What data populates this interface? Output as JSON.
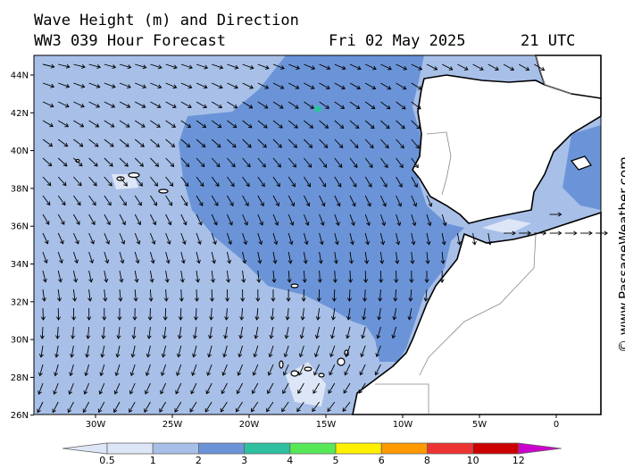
{
  "header": {
    "title_line1": "Wave Height (m) and Direction",
    "title_line2": "WW3 039 Hour Forecast",
    "date": "Fri 02 May 2025",
    "time": "21 UTC"
  },
  "credit": "© www.PassageWeather.com",
  "map": {
    "lat_ticks": [
      "44N",
      "42N",
      "40N",
      "38N",
      "36N",
      "34N",
      "32N",
      "30N",
      "28N",
      "26N"
    ],
    "lon_ticks": [
      "30W",
      "25W",
      "20W",
      "15W",
      "10W",
      "5W",
      "0"
    ],
    "region": "Iberia / Canary Islands"
  },
  "legend": {
    "levels": [
      "0.5",
      "1",
      "2",
      "3",
      "4",
      "5",
      "6",
      "8",
      "10",
      "12"
    ],
    "colors": [
      "#dde6f7",
      "#a8c0e8",
      "#6b94d8",
      "#2ec0a0",
      "#57e857",
      "#fff000",
      "#ff9900",
      "#ee3333",
      "#cc0000",
      "#cc00cc"
    ]
  },
  "colors": {
    "wave_low": "#a8c0e8",
    "wave_mid": "#6b94d8",
    "wave_lowest": "#dde6f7",
    "land": "#ffffff",
    "coast": "#000000",
    "border": "#888888"
  }
}
